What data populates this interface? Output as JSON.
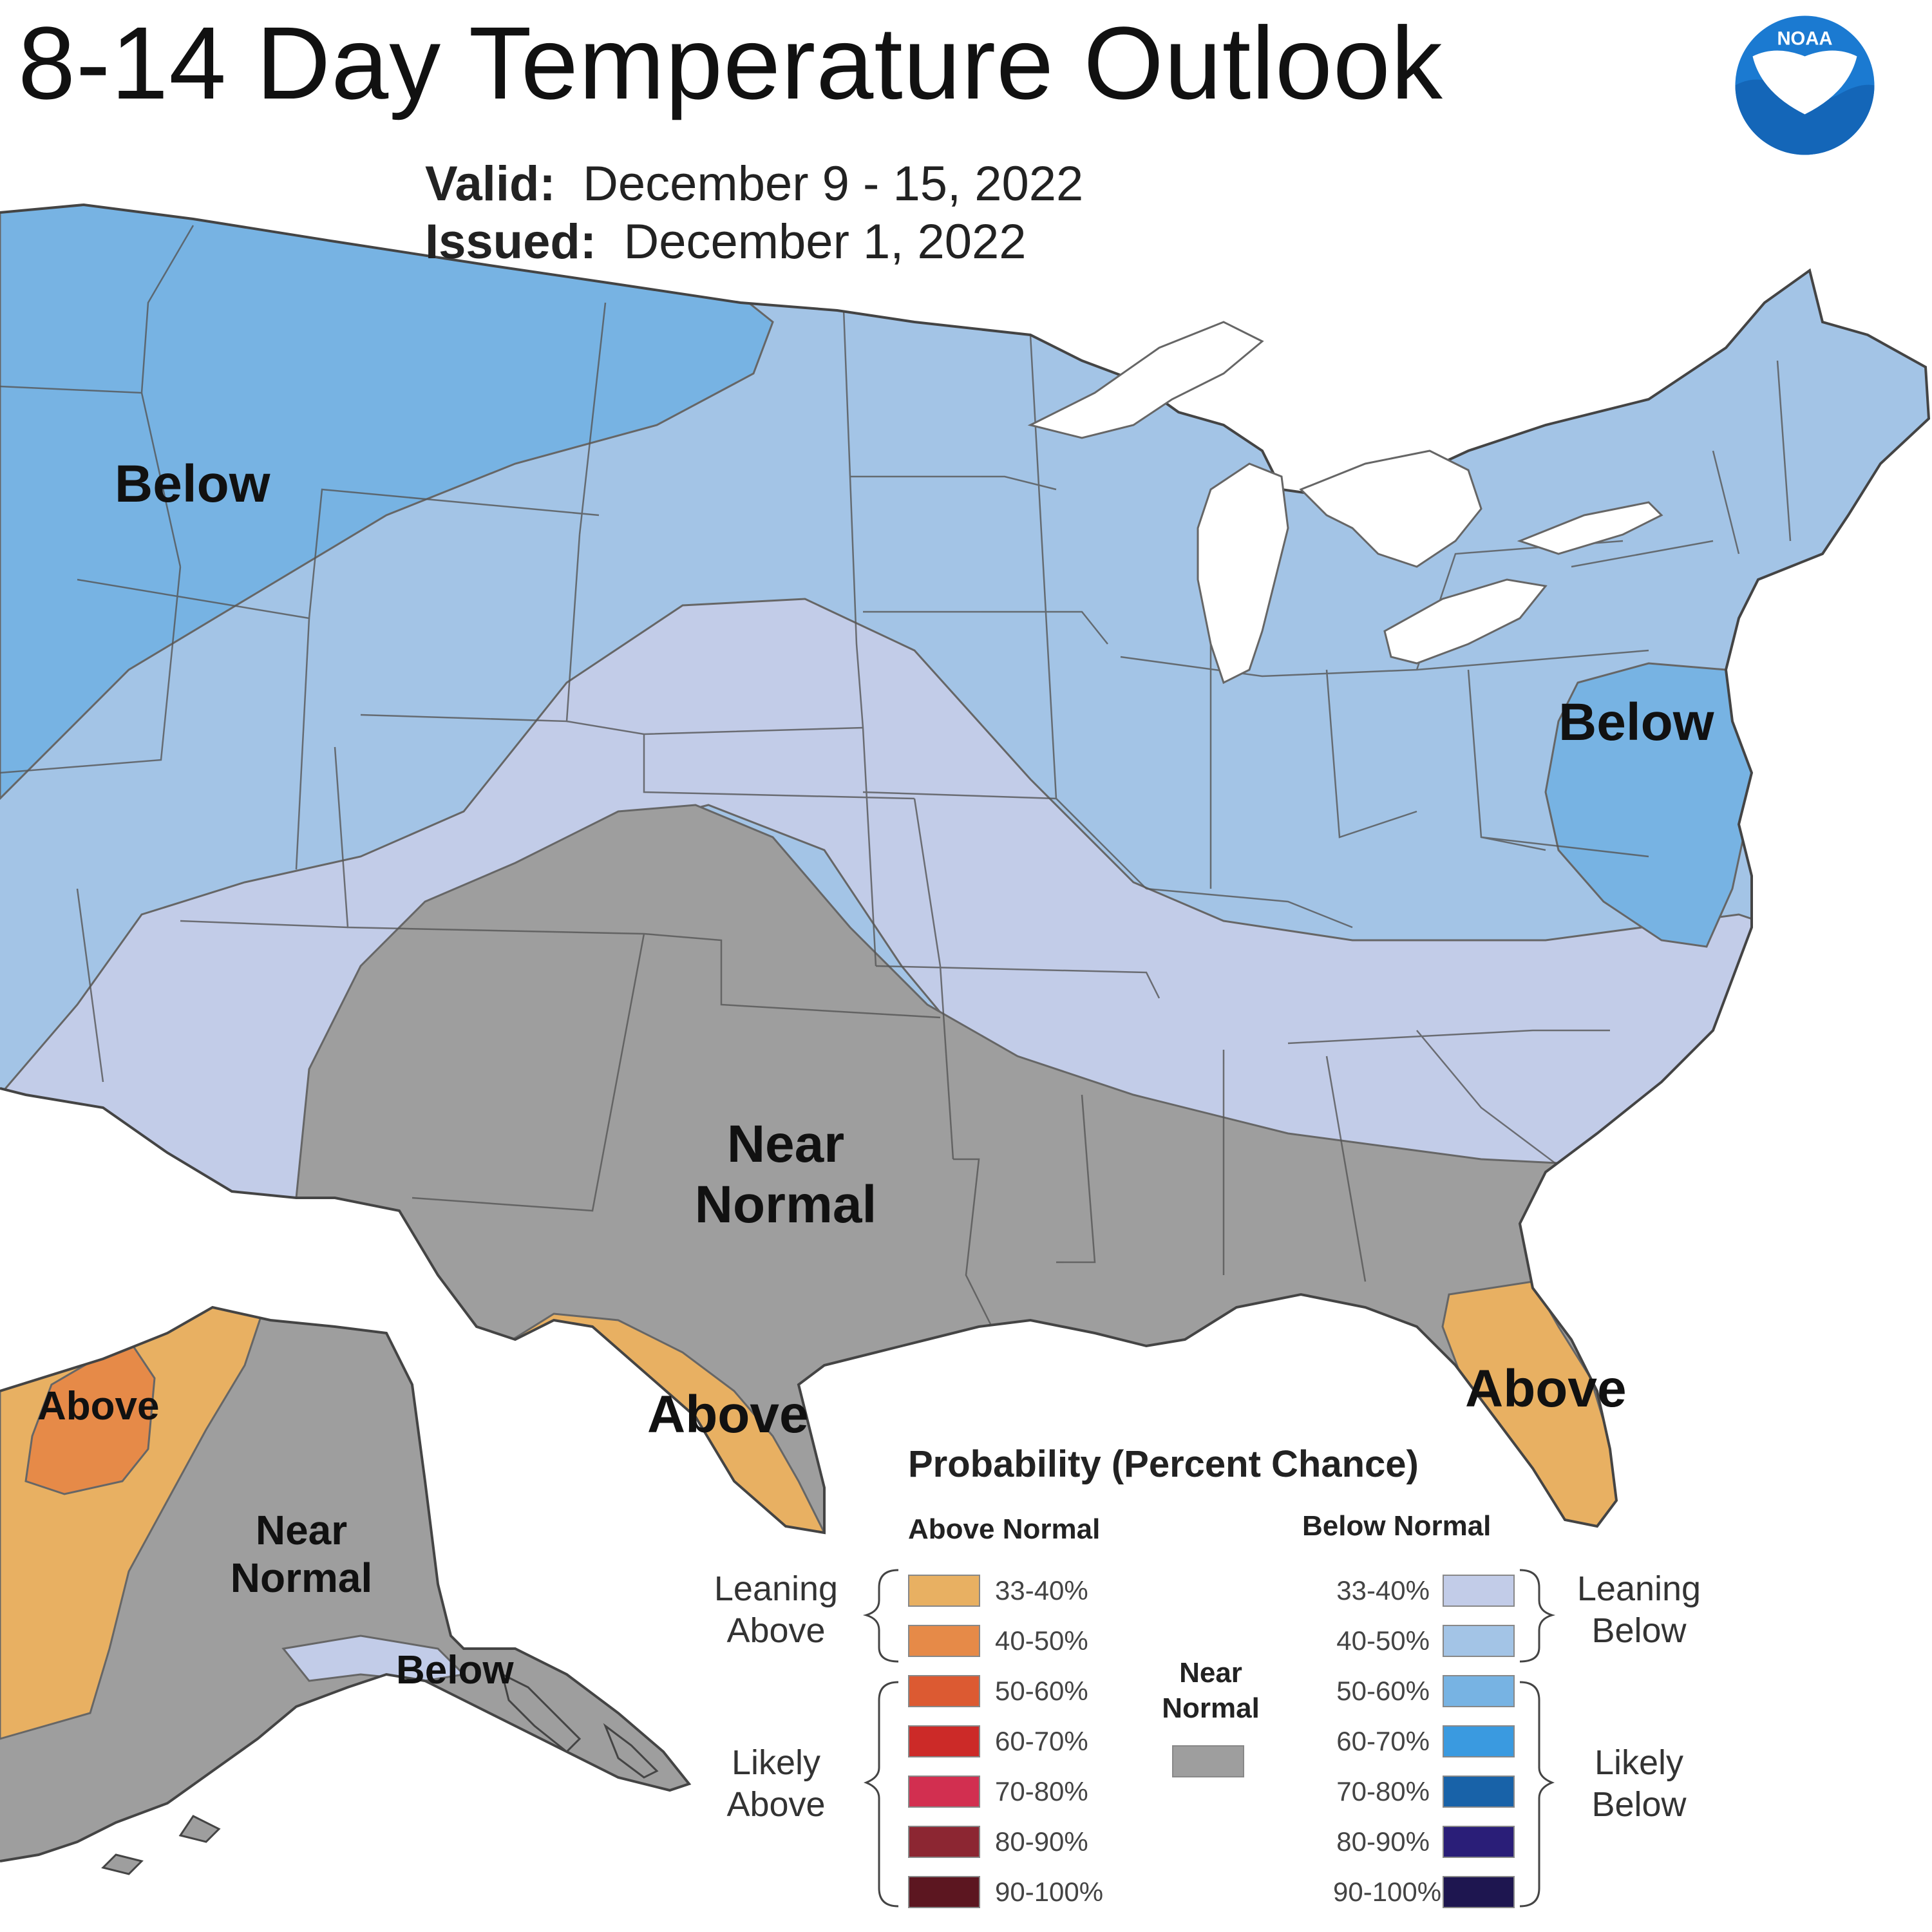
{
  "title": "8-14 Day Temperature Outlook",
  "valid_label": "Valid:",
  "valid_value": "December 9 - 15, 2022",
  "issued_label": "Issued:",
  "issued_value": "December 1, 2022",
  "logo_text": "NOAA",
  "region_labels": {
    "nw_below": "Below",
    "ne_below": "Below",
    "near_normal_line1": "Near",
    "near_normal_line2": "Normal",
    "tx_above": "Above",
    "fl_above": "Above",
    "ak_above": "Above",
    "ak_near_line1": "Near",
    "ak_near_line2": "Normal",
    "ak_below": "Below"
  },
  "legend": {
    "title": "Probability (Percent Chance)",
    "above_header": "Above Normal",
    "below_header": "Below Normal",
    "near_header_line1": "Near",
    "near_header_line2": "Normal",
    "leaning_above_line1": "Leaning",
    "leaning_above_line2": "Above",
    "likely_above_line1": "Likely",
    "likely_above_line2": "Above",
    "leaning_below_line1": "Leaning",
    "leaning_below_line2": "Below",
    "likely_below_line1": "Likely",
    "likely_below_line2": "Below",
    "above": [
      {
        "label": "33-40%",
        "color": "#E8B062"
      },
      {
        "label": "40-50%",
        "color": "#E68A48"
      },
      {
        "label": "50-60%",
        "color": "#DC5A32"
      },
      {
        "label": "60-70%",
        "color": "#CC2A28"
      },
      {
        "label": "70-80%",
        "color": "#D22F50"
      },
      {
        "label": "80-90%",
        "color": "#8C2632"
      },
      {
        "label": "90-100%",
        "color": "#5C1620"
      }
    ],
    "below": [
      {
        "label": "33-40%",
        "color": "#C2CCE8"
      },
      {
        "label": "40-50%",
        "color": "#A3C4E6"
      },
      {
        "label": "50-60%",
        "color": "#77B3E3"
      },
      {
        "label": "60-70%",
        "color": "#3A9AE0"
      },
      {
        "label": "70-80%",
        "color": "#1862A8"
      },
      {
        "label": "80-90%",
        "color": "#2A1E78"
      },
      {
        "label": "90-100%",
        "color": "#1E1650"
      }
    ],
    "near_color": "#9E9E9E"
  },
  "colors": {
    "below_40_50": "#A3C4E6",
    "below_50_60": "#77B3E3",
    "below_33_40": "#C2CCE8",
    "near_normal": "#9E9E9E",
    "above_33_40": "#E8B062",
    "above_40_50": "#E68A48"
  }
}
